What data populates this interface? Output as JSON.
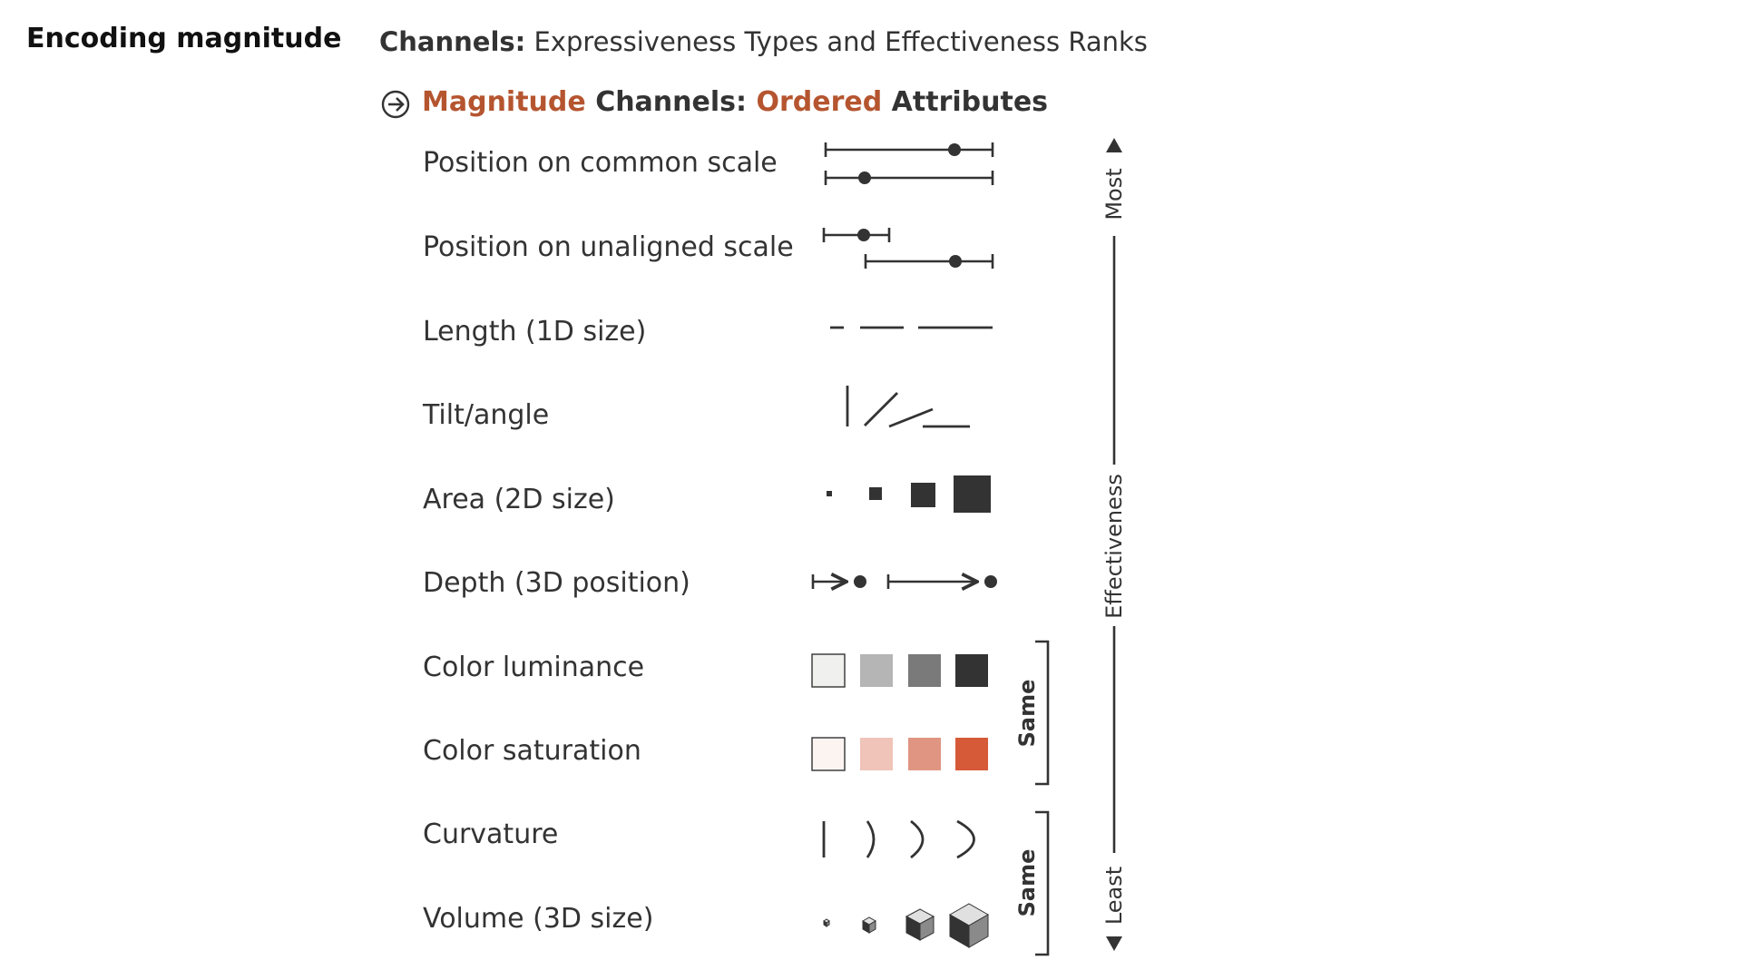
{
  "header": {
    "page_title": "Encoding magnitude",
    "channels_bold": "Channels:",
    "channels_rest": "Expressiveness Types and Effectiveness Ranks"
  },
  "subheading": {
    "part1": "Magnitude",
    "part2": "Channels:",
    "part3": "Ordered",
    "part4": "Attributes",
    "icon": "arrow-circle-right-icon"
  },
  "channels": [
    {
      "key": "position-common",
      "label": "Position on common scale"
    },
    {
      "key": "position-unaligned",
      "label": "Position on unaligned scale"
    },
    {
      "key": "length",
      "label": "Length (1D size)"
    },
    {
      "key": "tilt",
      "label": "Tilt/angle"
    },
    {
      "key": "area",
      "label": "Area (2D size)"
    },
    {
      "key": "depth",
      "label": "Depth (3D position)"
    },
    {
      "key": "luminance",
      "label": "Color luminance",
      "swatches": [
        "#f0f0ef",
        "#b5b5b5",
        "#7a7a7a",
        "#333333"
      ]
    },
    {
      "key": "saturation",
      "label": "Color saturation",
      "swatches": [
        "#fcf4f1",
        "#f0c4b8",
        "#e09582",
        "#d65a38"
      ]
    },
    {
      "key": "curvature",
      "label": "Curvature"
    },
    {
      "key": "volume",
      "label": "Volume (3D size)"
    }
  ],
  "brackets": [
    {
      "label": "Same",
      "from": "luminance",
      "to": "saturation"
    },
    {
      "label": "Same",
      "from": "curvature",
      "to": "volume"
    }
  ],
  "effectiveness": {
    "top": "Most",
    "middle": "Effectiveness",
    "bottom": "Least"
  },
  "colors": {
    "ink": "#333333",
    "accent": "#b5552f"
  }
}
